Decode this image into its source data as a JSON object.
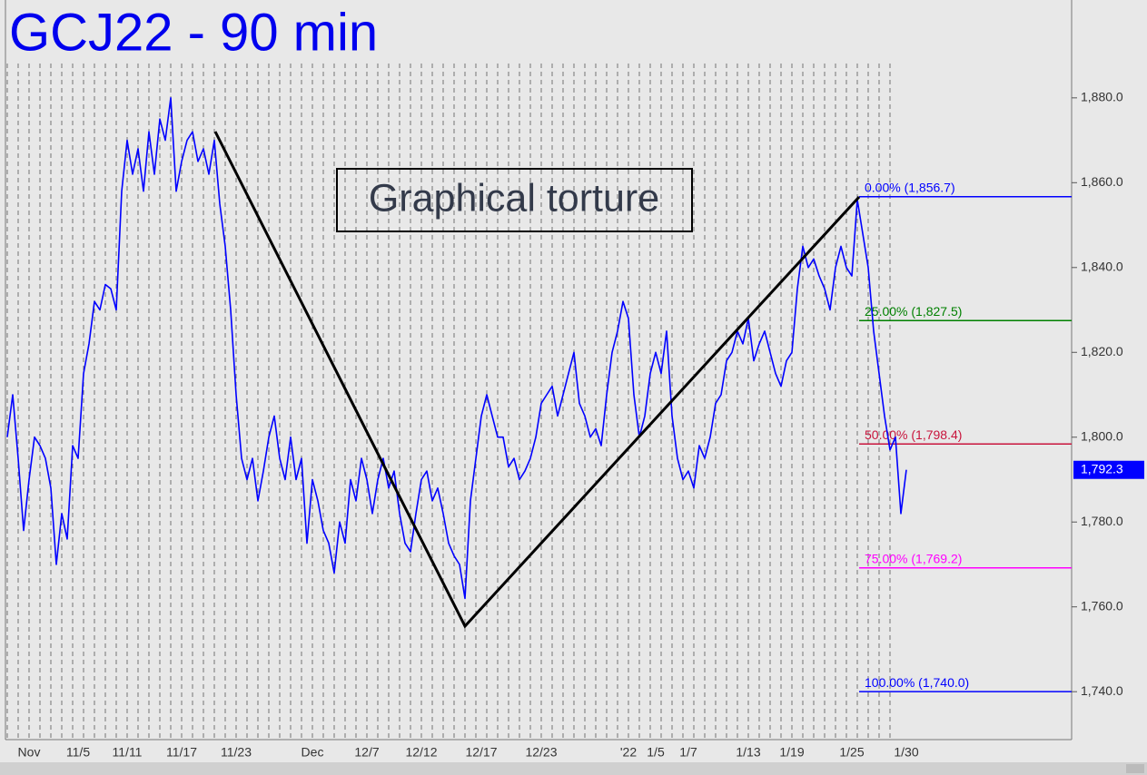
{
  "chart_data": {
    "type": "line",
    "title": "GCJ22 - 90 min",
    "annotation": "Graphical torture",
    "color": "#0000ff",
    "categories": [
      null,
      null,
      null,
      null,
      "Nov",
      null,
      null,
      null,
      null,
      null,
      null,
      null,
      null,
      "11/5",
      null,
      null,
      null,
      null,
      null,
      null,
      null,
      null,
      "11/11",
      null,
      null,
      null,
      null,
      null,
      null,
      null,
      null,
      null,
      "11/17",
      null,
      null,
      null,
      null,
      null,
      null,
      null,
      null,
      null,
      "11/23",
      null,
      null,
      null,
      null,
      null,
      null,
      null,
      null,
      null,
      null,
      null,
      null,
      null,
      "Dec",
      null,
      null,
      null,
      null,
      null,
      null,
      null,
      null,
      null,
      "12/7",
      null,
      null,
      null,
      null,
      null,
      null,
      null,
      null,
      null,
      "12/12",
      null,
      null,
      null,
      null,
      null,
      null,
      null,
      null,
      null,
      null,
      "12/17",
      null,
      null,
      null,
      null,
      null,
      null,
      null,
      null,
      null,
      null,
      "12/23",
      null,
      null,
      null,
      null,
      null,
      null,
      null,
      null,
      null,
      null,
      null,
      null,
      null,
      null,
      null,
      "'22",
      null,
      null,
      null,
      null,
      "1/5",
      null,
      null,
      null,
      null,
      null,
      "1/7",
      null,
      null,
      null,
      null,
      null,
      null,
      null,
      null,
      null,
      null,
      "1/13",
      null,
      null,
      null,
      null,
      null,
      null,
      null,
      "1/19",
      null,
      null,
      null,
      null,
      null,
      null,
      null,
      null,
      null,
      null,
      "1/25",
      null,
      null,
      null,
      null,
      null,
      null,
      null,
      null,
      null,
      "1/30",
      null,
      null,
      null,
      null,
      null,
      null,
      null,
      null,
      null,
      null,
      null,
      null,
      null,
      null,
      null,
      null,
      null,
      null,
      null,
      null,
      null,
      null,
      null,
      null,
      null,
      null,
      null,
      null,
      null,
      null
    ],
    "values": [
      1800,
      1810,
      1795,
      1778,
      1790,
      1800,
      1798,
      1795,
      1788,
      1770,
      1782,
      1776,
      1798,
      1795,
      1815,
      1822,
      1832,
      1830,
      1836,
      1835,
      1830,
      1858,
      1870,
      1862,
      1868,
      1858,
      1872,
      1862,
      1875,
      1870,
      1880,
      1858,
      1865,
      1870,
      1872,
      1865,
      1868,
      1862,
      1870,
      1855,
      1845,
      1830,
      1810,
      1795,
      1790,
      1795,
      1785,
      1792,
      1800,
      1805,
      1795,
      1790,
      1800,
      1790,
      1795,
      1775,
      1790,
      1785,
      1778,
      1775,
      1768,
      1780,
      1775,
      1790,
      1785,
      1795,
      1790,
      1782,
      1790,
      1795,
      1788,
      1792,
      1782,
      1775,
      1773,
      1782,
      1790,
      1792,
      1785,
      1788,
      1782,
      1775,
      1772,
      1770,
      1762,
      1785,
      1795,
      1805,
      1810,
      1805,
      1800,
      1800,
      1793,
      1795,
      1790,
      1792,
      1795,
      1800,
      1808,
      1810,
      1812,
      1805,
      1810,
      1815,
      1820,
      1808,
      1805,
      1800,
      1802,
      1798,
      1810,
      1820,
      1825,
      1832,
      1828,
      1810,
      1800,
      1805,
      1815,
      1820,
      1815,
      1825,
      1805,
      1795,
      1790,
      1792,
      1788,
      1798,
      1795,
      1800,
      1808,
      1810,
      1818,
      1820,
      1825,
      1822,
      1828,
      1818,
      1822,
      1825,
      1820,
      1815,
      1812,
      1818,
      1820,
      1835,
      1845,
      1840,
      1842,
      1838,
      1835,
      1830,
      1840,
      1845,
      1840,
      1838,
      1856,
      1848,
      1840,
      1825,
      1815,
      1805,
      1797,
      1800,
      1782,
      1792.3,
      null,
      null,
      null,
      null,
      null,
      null,
      null,
      null,
      null,
      null,
      null,
      null,
      null,
      null,
      null,
      null,
      null,
      null,
      null,
      null,
      null,
      null,
      null,
      null,
      null,
      null,
      null,
      null,
      null,
      null
    ],
    "ylim": [
      1728.7,
      1902
    ],
    "yticks": [
      {
        "value": 1740,
        "label": "1,740.0"
      },
      {
        "value": 1760,
        "label": "1,760.0"
      },
      {
        "value": 1780,
        "label": "1,780.0"
      },
      {
        "value": 1800,
        "label": "1,800.0"
      },
      {
        "value": 1820,
        "label": "1,820.0"
      },
      {
        "value": 1840,
        "label": "1,840.0"
      },
      {
        "value": 1860,
        "label": "1,860.0"
      },
      {
        "value": 1880,
        "label": "1,880.0"
      }
    ],
    "last_price": {
      "value": 1792.3,
      "label": "1,792.3"
    },
    "levels": [
      {
        "value": 1856.7,
        "label": "0.00% (1,856.7)",
        "color": "#0000ff"
      },
      {
        "value": 1827.5,
        "label": "25.00% (1,827.5)",
        "color": "#008000"
      },
      {
        "value": 1798.4,
        "label": "50.00% (1,798.4)",
        "color": "#c8143c"
      },
      {
        "value": 1769.2,
        "label": "75.00% (1,769.2)",
        "color": "#ff00ff"
      },
      {
        "value": 1740.0,
        "label": "100.00% (1,740.0)",
        "color": "#0000ff"
      }
    ]
  }
}
